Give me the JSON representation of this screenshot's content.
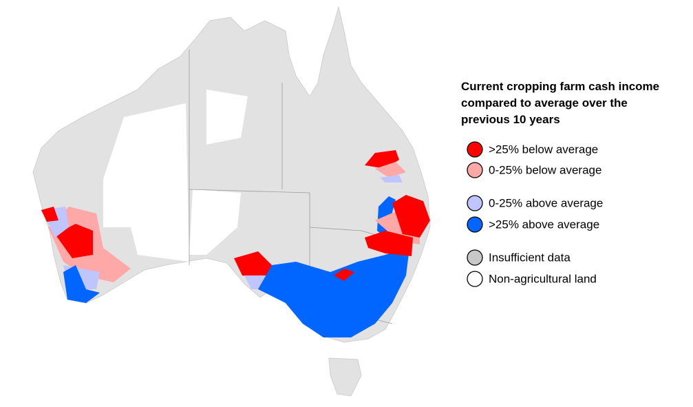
{
  "legend": {
    "title": [
      "Current cropping farm cash income",
      "compared to average over the",
      "previous 10 years"
    ],
    "items": [
      {
        "label": ">25% below average",
        "color": "#ff0000"
      },
      {
        "label": "0-25% below average",
        "color": "#ffa8a8"
      },
      {
        "label": "0-25% above average",
        "color": "#bfc5ff"
      },
      {
        "label": ">25% above average",
        "color": "#0066ff"
      },
      {
        "label": "Insufficient data",
        "color": "#c8c8c8"
      },
      {
        "label": "Non-agricultural land",
        "color": "#ffffff"
      }
    ]
  }
}
